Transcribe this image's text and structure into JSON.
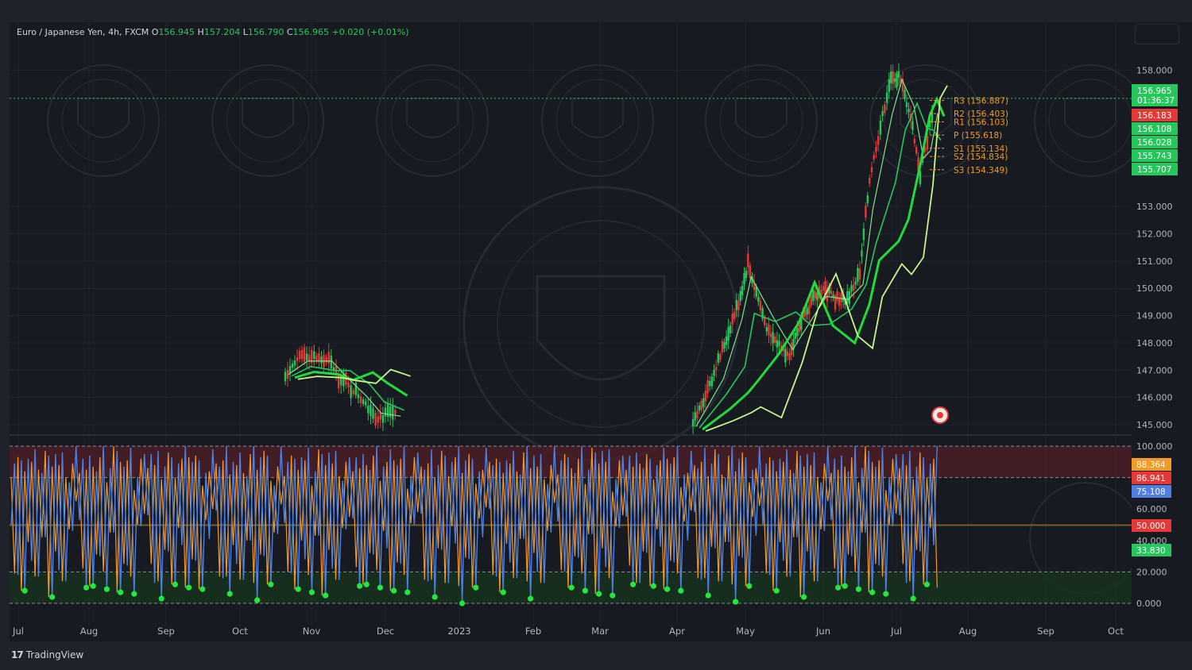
{
  "legend": {
    "symbol": "Euro / Japanese Yen, 4h, FXCM",
    "o_label": "O",
    "o_value": "156.945",
    "h_label": "H",
    "h_value": "157.204",
    "l_label": "L",
    "l_value": "156.790",
    "c_label": "C",
    "c_value": "156.965",
    "change": "+0.020 (+0.01%)"
  },
  "brand": {
    "logo": "17",
    "name": "TradingView"
  },
  "colors": {
    "background": "#171a21",
    "up_candle": "#26c75a",
    "down_candle": "#e53935",
    "stoch_k": "#4f7fe0",
    "stoch_d": "#f59a23",
    "overbought_zone": "#4a1f26",
    "oversold_zone": "#17331f",
    "pivot_label": "#f59a23"
  },
  "chart_data": [
    {
      "type": "line",
      "title": "Euro / Japanese Yen, 4h, FXCM",
      "price_axis_ticks": [
        "158.000",
        "153.000",
        "152.000",
        "151.000",
        "150.000",
        "149.000",
        "148.000",
        "147.000",
        "146.000",
        "145.000"
      ],
      "time_axis_ticks": [
        "Jul",
        "Aug",
        "Sep",
        "Oct",
        "Nov",
        "Dec",
        "2023",
        "Feb",
        "Mar",
        "Apr",
        "May",
        "Jun",
        "Jul",
        "Aug",
        "Sep",
        "Oct"
      ],
      "ylim": [
        145.0,
        158.3
      ],
      "series": [
        {
          "values": [
            {
              "x": "Oct 20",
              "y": 146.9
            },
            {
              "x": "Oct 28",
              "y": 147.6
            },
            {
              "x": "Nov 8",
              "y": 147.3
            },
            {
              "x": "Nov 14",
              "y": 146.6
            },
            {
              "x": "Nov 22",
              "y": 145.9
            },
            {
              "x": "Nov 28",
              "y": 145.3
            },
            {
              "x": "Dec 6",
              "y": 145.4
            },
            {
              "x": "Apr 8",
              "y": 145.0
            },
            {
              "x": "Apr 20",
              "y": 147.5
            },
            {
              "x": "Apr 28",
              "y": 149.5
            },
            {
              "x": "May 2",
              "y": 150.9
            },
            {
              "x": "May 10",
              "y": 148.3
            },
            {
              "x": "May 18",
              "y": 147.6
            },
            {
              "x": "May 24",
              "y": 149.2
            },
            {
              "x": "Jun 1",
              "y": 150.0
            },
            {
              "x": "Jun 10",
              "y": 149.5
            },
            {
              "x": "Jun 16",
              "y": 150.5
            },
            {
              "x": "Jun 20",
              "y": 154.0
            },
            {
              "x": "Jun 28",
              "y": 157.5
            },
            {
              "x": "Jul 2",
              "y": 157.8
            },
            {
              "x": "Jul 7",
              "y": 156.3
            },
            {
              "x": "Jul 11",
              "y": 154.2
            },
            {
              "x": "Jul 14",
              "y": 155.5
            },
            {
              "x": "Jul 17",
              "y": 156.9
            }
          ]
        }
      ],
      "pivot_levels": [
        {
          "name": "R3",
          "label": "R3 (156.887)",
          "value": 156.887
        },
        {
          "name": "R2",
          "label": "R2 (156.403)",
          "value": 156.403
        },
        {
          "name": "R1",
          "label": "R1 (156.103)",
          "value": 156.103
        },
        {
          "name": "P",
          "label": "P (155.618)",
          "value": 155.618
        },
        {
          "name": "S1",
          "label": "S1 (155.134)",
          "value": 155.134
        },
        {
          "name": "S2",
          "label": "S2 (154.834)",
          "value": 154.834
        },
        {
          "name": "S3",
          "label": "S3 (154.349)",
          "value": 154.349
        }
      ],
      "price_badges": [
        {
          "value": "156.965",
          "sub": "01:36:37",
          "color": "#26c75a"
        },
        {
          "value": "156.183",
          "color": "#e53935"
        },
        {
          "value": "156.108",
          "color": "#26c75a"
        },
        {
          "value": "156.028",
          "color": "#26c75a"
        },
        {
          "value": "155.743",
          "color": "#26c75a"
        },
        {
          "value": "155.707",
          "color": "#26c75a"
        }
      ]
    },
    {
      "type": "line",
      "title": "",
      "y_axis_ticks": [
        "100.000",
        "60.000",
        "40.000",
        "20.000",
        "0.000"
      ],
      "ylim": [
        0,
        100
      ],
      "levels": [
        100,
        80,
        50,
        20,
        0
      ],
      "series": [
        {
          "name": "",
          "values": [
            55,
            90,
            15,
            95,
            8,
            88,
            30,
            97,
            12,
            85,
            40,
            99,
            5,
            92,
            25,
            96,
            10,
            80,
            45,
            98
          ]
        },
        {
          "name": "",
          "values": [
            60,
            85,
            20,
            90,
            12,
            84,
            35,
            93,
            16,
            80,
            44,
            95,
            9,
            88,
            30,
            92,
            14,
            76,
            50,
            88
          ]
        }
      ],
      "value_badges": [
        {
          "value": "88.364",
          "color": "#f59a23"
        },
        {
          "value": "86.941",
          "color": "#e53935"
        },
        {
          "value": "75.108",
          "color": "#4f7fe0"
        },
        {
          "value": "50.000",
          "color": "#e53935"
        },
        {
          "value": "33.830",
          "color": "#26c75a"
        }
      ]
    }
  ]
}
